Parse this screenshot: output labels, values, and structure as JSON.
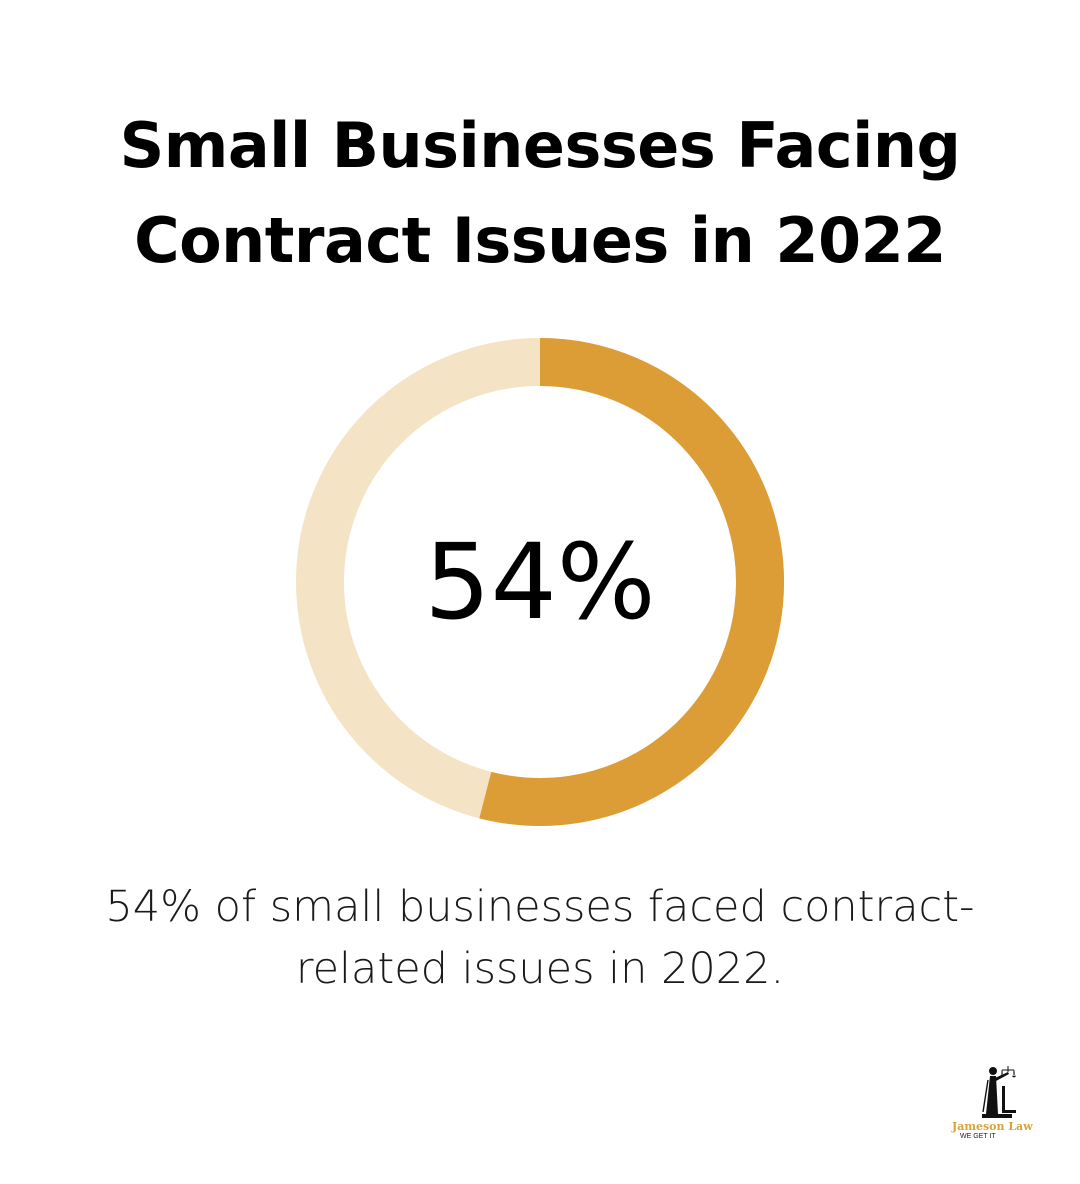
{
  "title_lines": [
    "Small Businesses Facing",
    "Contract Issues in 2022"
  ],
  "chart_data": {
    "type": "pie",
    "variant": "donut",
    "values": [
      54,
      46
    ],
    "center_label": "54%",
    "colors": {
      "filled": "#dc9d37",
      "remaining": "#f5e3c6"
    }
  },
  "caption_lines": [
    "54% of small businesses faced contract-",
    "related issues in 2022."
  ],
  "logo": {
    "name": "Jameson Law",
    "tagline": "WE GET IT",
    "icon": "lady-justice-icon"
  }
}
